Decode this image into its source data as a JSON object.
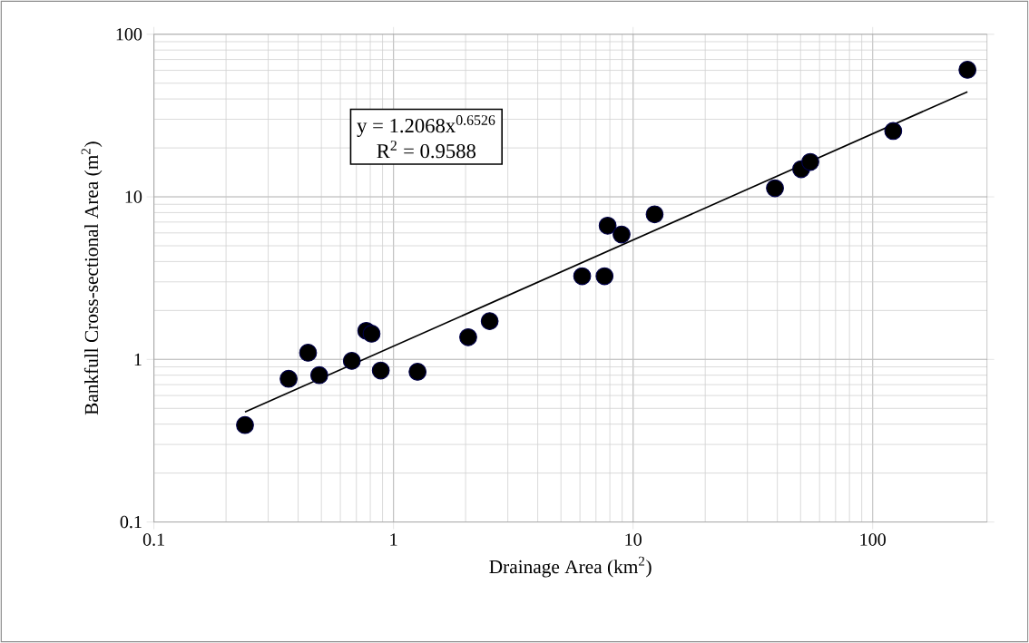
{
  "chart_data": {
    "type": "scatter",
    "xlabel": "Drainage Area (km$^{2}$)",
    "ylabel": "Bankfull Cross-sectional Area (m$^{2}$)",
    "annotations": [
      "y = 1.2068x$^{0.6526}$",
      "R$^{2}$ = 0.9588"
    ],
    "log": "xy",
    "grid": true,
    "xlim": [
      0.1,
      300
    ],
    "ylim": [
      0.1,
      100
    ],
    "xticks": [
      0.1,
      1,
      10,
      100
    ],
    "yticks": [
      0.1,
      1,
      10,
      100
    ],
    "series": [
      {
        "color": "#000000",
        "marker": "circle",
        "x": [
          0.24,
          0.365,
          0.44,
          0.49,
          0.67,
          0.77,
          0.81,
          0.885,
          1.26,
          2.05,
          2.52,
          6.13,
          7.6,
          7.83,
          8.95,
          12.3,
          39.1,
          50.3,
          54.9,
          121.8,
          248.6
        ],
        "values": [
          0.395,
          0.76,
          1.1,
          0.8,
          0.98,
          1.5,
          1.44,
          0.855,
          0.84,
          1.37,
          1.72,
          3.25,
          3.25,
          6.65,
          5.87,
          7.81,
          11.3,
          14.8,
          16.4,
          25.4,
          60.5
        ]
      },
      {
        "type": "line",
        "color": "#000000",
        "marker": "none",
        "x": [
          0.24,
          248.6
        ],
        "values": [
          0.475,
          44.3
        ]
      }
    ]
  }
}
